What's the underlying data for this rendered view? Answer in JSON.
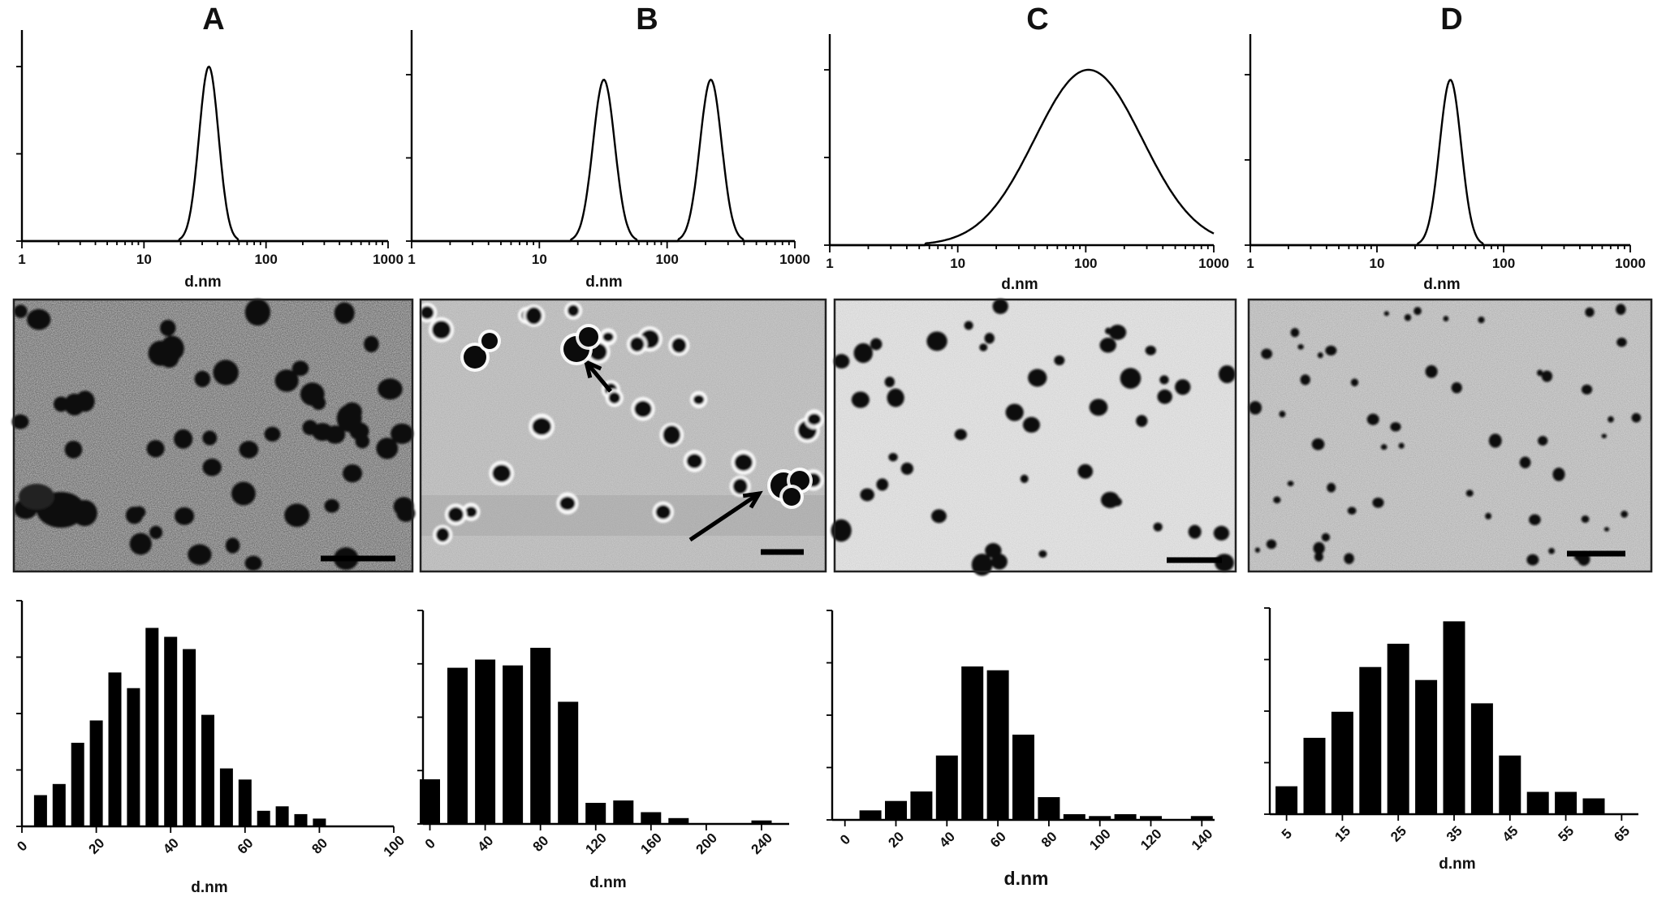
{
  "panels": [
    {
      "letter": "A",
      "dls": {
        "xlabel": "d.nm",
        "xscale": "log",
        "xlim": [
          1,
          1000
        ],
        "tick_labels": [
          "1",
          "10",
          "100",
          "1000"
        ],
        "peaks": [
          {
            "center": 34,
            "sigma": 0.08,
            "height": 1.0
          }
        ]
      },
      "histogram": {
        "xlabel": "d.nm",
        "xlim": [
          0,
          100
        ],
        "tick_labels": [
          "0",
          "20",
          "40",
          "60",
          "80",
          "100"
        ],
        "tick_values": [
          0,
          20,
          40,
          60,
          80,
          100
        ],
        "bin_width": 5,
        "bin_centers": [
          5,
          10,
          15,
          20,
          25,
          30,
          35,
          40,
          45,
          50,
          55,
          60,
          65,
          70,
          75,
          80
        ],
        "values": [
          28,
          38,
          75,
          95,
          138,
          124,
          178,
          170,
          159,
          100,
          52,
          42,
          14,
          18,
          11,
          7
        ],
        "ymax": 190
      }
    },
    {
      "letter": "B",
      "dls": {
        "xlabel": "d.nm",
        "xscale": "log",
        "xlim": [
          1,
          1000
        ],
        "tick_labels": [
          "1",
          "10",
          "100",
          "1000"
        ],
        "peaks": [
          {
            "center": 32,
            "sigma": 0.085,
            "height": 0.97
          },
          {
            "center": 220,
            "sigma": 0.085,
            "height": 0.97
          }
        ]
      },
      "histogram": {
        "xlabel": "d.nm",
        "xlim": [
          -5,
          260
        ],
        "tick_labels": [
          "0",
          "40",
          "80",
          "120",
          "160",
          "200",
          "240"
        ],
        "tick_values": [
          0,
          40,
          80,
          120,
          160,
          200,
          240
        ],
        "bin_width": 20,
        "bin_centers": [
          0,
          20,
          40,
          60,
          80,
          100,
          120,
          140,
          160,
          180,
          200,
          220,
          240
        ],
        "values": [
          38,
          133,
          140,
          135,
          150,
          104,
          18,
          20,
          10,
          5,
          0,
          0,
          3
        ],
        "ymax": 150
      }
    },
    {
      "letter": "C",
      "dls": {
        "xlabel": "d.nm",
        "xscale": "log",
        "xlim": [
          1,
          1000
        ],
        "tick_labels": [
          "1",
          "10",
          "100",
          "1000"
        ],
        "peaks": [
          {
            "center": 105,
            "sigma": 0.42,
            "height": 1.0
          }
        ]
      },
      "histogram": {
        "xlabel": "d.nm",
        "xlim": [
          -5,
          145
        ],
        "tick_labels": [
          "0",
          "20",
          "40",
          "60",
          "80",
          "100",
          "120",
          "140"
        ],
        "tick_values": [
          0,
          20,
          40,
          60,
          80,
          100,
          120,
          140
        ],
        "bin_width": 10,
        "bin_centers": [
          10,
          20,
          30,
          40,
          50,
          60,
          70,
          80,
          90,
          100,
          110,
          120,
          140
        ],
        "values": [
          5,
          10,
          15,
          34,
          81,
          79,
          45,
          12,
          3,
          2,
          3,
          2,
          2
        ],
        "ymax": 90
      }
    },
    {
      "letter": "D",
      "dls": {
        "xlabel": "d.nm",
        "xscale": "log",
        "xlim": [
          1,
          1000
        ],
        "tick_labels": [
          "1",
          "10",
          "100",
          "1000"
        ],
        "peaks": [
          {
            "center": 38,
            "sigma": 0.085,
            "height": 0.97
          }
        ]
      },
      "histogram": {
        "xlabel": "d.nm",
        "xlim": [
          2,
          68
        ],
        "tick_labels": [
          "5",
          "15",
          "25",
          "35",
          "45",
          "55",
          "65"
        ],
        "tick_values": [
          5,
          15,
          25,
          35,
          45,
          55,
          65
        ],
        "bin_width": 5,
        "bin_centers": [
          5,
          10,
          15,
          20,
          25,
          30,
          35,
          40,
          45,
          50,
          55,
          60,
          65
        ],
        "values": [
          30,
          82,
          110,
          158,
          183,
          144,
          207,
          119,
          63,
          24,
          24,
          17,
          0
        ],
        "ymax": 210
      }
    }
  ]
}
